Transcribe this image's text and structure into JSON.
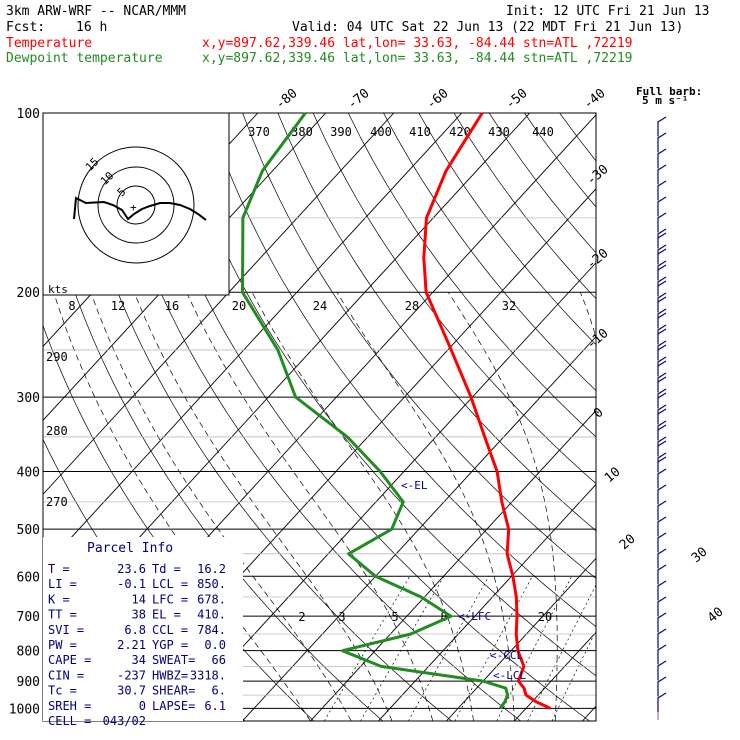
{
  "header": {
    "model": "3km ARW-WRF -- NCAR/MMM",
    "init": "Init: 12 UTC Fri 21 Jun 13",
    "fcst_label": "Fcst:",
    "fcst_value": "16 h",
    "valid": "Valid: 04 UTC Sat 22 Jun 13 (22 MDT Fri 21 Jun 13)",
    "temp_label": "Temperature",
    "temp_info": "x,y=897.62,339.46   lat,lon= 33.63, -84.44  stn=ATL ,72219",
    "dew_label": "Dewpoint temperature",
    "dew_info": "x,y=897.62,339.46   lat,lon= 33.63, -84.44  stn=ATL ,72219"
  },
  "colors": {
    "temperature": "#ff0000",
    "dewpoint": "#228b22",
    "wind": "#000080",
    "grid": "#000000"
  },
  "wind_key": {
    "line1": "Full barb:",
    "line2": "5 m s⁻¹"
  },
  "hodograph": {
    "units_label": "kts",
    "ring_labels": [
      "15",
      "10",
      "5"
    ],
    "plus": "+"
  },
  "parcel_info": {
    "title": "Parcel Info",
    "rows": [
      [
        "T  =",
        "23.6",
        "Td =",
        "16.2"
      ],
      [
        "LI =",
        "-0.1",
        "LCL =",
        "850."
      ],
      [
        "K  =",
        "14",
        "LFC =",
        "678."
      ],
      [
        "TT =",
        "38",
        "EL  =",
        "410."
      ],
      [
        "SVI =",
        "6.8",
        "CCL =",
        "784."
      ],
      [
        "PW =",
        "2.21",
        "YGP =",
        "0.0"
      ],
      [
        "CAPE =",
        "34",
        "SWEAT=",
        "66"
      ],
      [
        "CIN =",
        "-237",
        "HWBZ= ",
        "3318."
      ],
      [
        "Tc =",
        "30.7",
        "SHEAR=",
        "6."
      ],
      [
        "SREH =",
        "0",
        "LAPSE=",
        "6.1"
      ],
      [
        "CELL =",
        "043/02",
        "",
        ""
      ]
    ]
  },
  "level_markers": {
    "el": "<-EL",
    "lfc": "<-LFC",
    "ccl": "<-CCL",
    "lcl": "<-LCL"
  },
  "chart_data": {
    "type": "line",
    "pressure_levels": [
      "100",
      "200",
      "300",
      "400",
      "500",
      "600",
      "700",
      "800",
      "900",
      "1000"
    ],
    "theta_labels": [
      "370",
      "380",
      "390",
      "400",
      "410",
      "420",
      "430",
      "440"
    ],
    "mixing_ratio_labels": [
      "8",
      "12",
      "16",
      "20",
      "24",
      "28",
      "32"
    ],
    "mixing_ratio_lower_labels": [
      "2",
      "3",
      "5",
      "8",
      "20"
    ],
    "theta_e_labels": [
      "290",
      "280",
      "270"
    ],
    "isotherm_labels": [
      "-80",
      "-70",
      "-60",
      "-50",
      "-40",
      "-30",
      "-20",
      "-10",
      "0",
      "10",
      "20",
      "30",
      "40"
    ],
    "series": [
      {
        "name": "Temperature",
        "points": [
          [
            1000,
            23.6
          ],
          [
            975,
            20.6
          ],
          [
            950,
            18.2
          ],
          [
            925,
            17.0
          ],
          [
            900,
            15.2
          ],
          [
            850,
            14.0
          ],
          [
            800,
            11.0
          ],
          [
            750,
            8.5
          ],
          [
            700,
            6.2
          ],
          [
            650,
            3.5
          ],
          [
            600,
            0.2
          ],
          [
            550,
            -3.7
          ],
          [
            500,
            -6.8
          ],
          [
            450,
            -11.5
          ],
          [
            400,
            -16.3
          ],
          [
            350,
            -22.8
          ],
          [
            300,
            -30.2
          ],
          [
            250,
            -39.5
          ],
          [
            200,
            -51.0
          ],
          [
            175,
            -56.0
          ],
          [
            150,
            -61.0
          ],
          [
            125,
            -64.5
          ],
          [
            100,
            -67.0
          ]
        ]
      },
      {
        "name": "Dewpoint temperature",
        "points": [
          [
            1000,
            16.2
          ],
          [
            975,
            16.0
          ],
          [
            950,
            15.5
          ],
          [
            925,
            14.3
          ],
          [
            900,
            10.0
          ],
          [
            850,
            -7.0
          ],
          [
            800,
            -14.8
          ],
          [
            750,
            -7.0
          ],
          [
            700,
            -3.5
          ],
          [
            650,
            -10.5
          ],
          [
            600,
            -20.0
          ],
          [
            550,
            -27.0
          ],
          [
            500,
            -24.0
          ],
          [
            450,
            -26.0
          ],
          [
            400,
            -33.5
          ],
          [
            350,
            -43.0
          ],
          [
            300,
            -56.0
          ],
          [
            250,
            -65.0
          ],
          [
            200,
            -78.0
          ],
          [
            150,
            -88.0
          ],
          [
            125,
            -91.5
          ],
          [
            100,
            -93.0
          ]
        ]
      }
    ],
    "ylim": [
      100,
      1000
    ],
    "xlim": [
      -40,
      40
    ]
  }
}
